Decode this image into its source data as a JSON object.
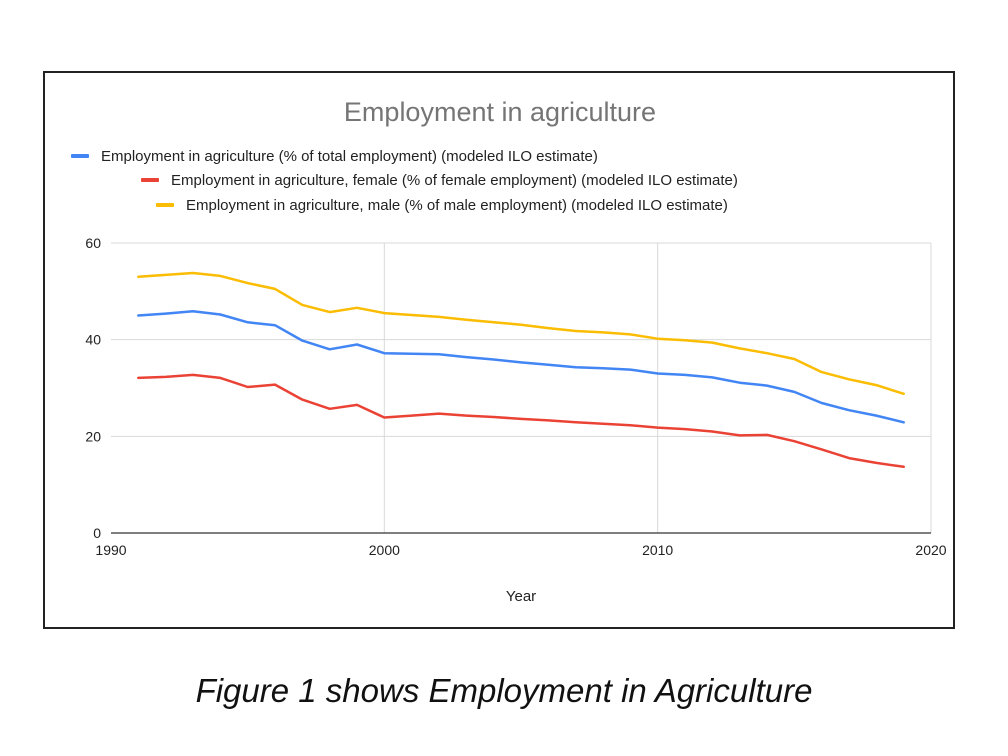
{
  "chart_data": {
    "type": "line",
    "title": "Employment in agriculture",
    "xlabel": "Year",
    "ylabel": "",
    "xlim": [
      1990,
      2020
    ],
    "ylim": [
      0,
      60
    ],
    "xticks": [
      1990,
      2000,
      2010,
      2020
    ],
    "yticks": [
      0,
      20,
      40,
      60
    ],
    "grid": true,
    "legend_position": "top",
    "x": [
      1991,
      1992,
      1993,
      1994,
      1995,
      1996,
      1997,
      1998,
      1999,
      2000,
      2001,
      2002,
      2003,
      2004,
      2005,
      2006,
      2007,
      2008,
      2009,
      2010,
      2011,
      2012,
      2013,
      2014,
      2015,
      2016,
      2017,
      2018,
      2019
    ],
    "series": [
      {
        "name": "Employment in agriculture (% of total employment) (modeled ILO estimate)",
        "color": "#4285f4",
        "values": [
          45.0,
          45.4,
          45.9,
          45.2,
          43.6,
          43.0,
          39.8,
          38.0,
          39.0,
          37.2,
          37.1,
          37.0,
          36.4,
          35.9,
          35.3,
          34.8,
          34.3,
          34.1,
          33.8,
          33.0,
          32.7,
          32.2,
          31.1,
          30.5,
          29.2,
          26.9,
          25.4,
          24.3,
          22.9
        ]
      },
      {
        "name": "Employment in agriculture, female (% of female employment) (modeled ILO estimate)",
        "color": "#ea4335",
        "values": [
          32.1,
          32.3,
          32.7,
          32.1,
          30.2,
          30.7,
          27.6,
          25.7,
          26.5,
          23.9,
          24.3,
          24.7,
          24.3,
          24.0,
          23.6,
          23.3,
          22.9,
          22.6,
          22.3,
          21.8,
          21.5,
          21.0,
          20.2,
          20.3,
          19.0,
          17.3,
          15.5,
          14.5,
          13.7
        ]
      },
      {
        "name": "Employment in agriculture, male (% of male employment) (modeled ILO estimate)",
        "color": "#fbbc04",
        "values": [
          53.0,
          53.4,
          53.8,
          53.2,
          51.7,
          50.5,
          47.2,
          45.7,
          46.6,
          45.5,
          45.1,
          44.7,
          44.1,
          43.6,
          43.1,
          42.4,
          41.8,
          41.5,
          41.1,
          40.2,
          39.9,
          39.4,
          38.2,
          37.2,
          36.0,
          33.3,
          31.8,
          30.6,
          28.8
        ]
      }
    ]
  },
  "caption": "Figure 1 shows Employment in Agriculture"
}
